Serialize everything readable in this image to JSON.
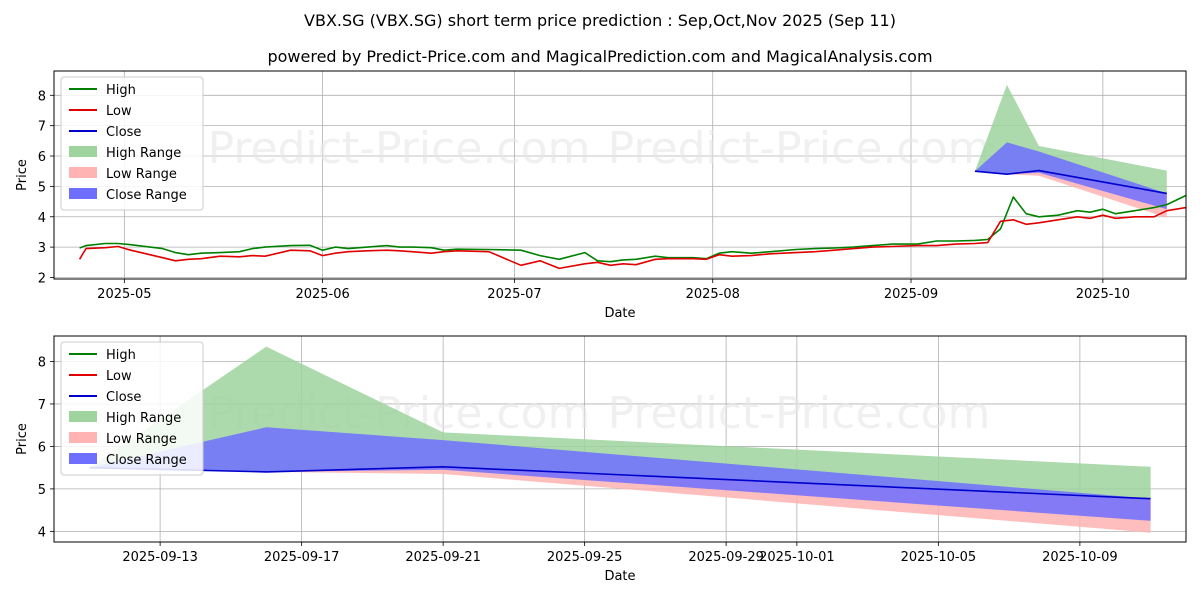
{
  "header": {
    "title": "VBX.SG (VBX.SG) short term price prediction : Sep,Oct,Nov 2025 (Sep 11)",
    "subtitle": "powered by Predict-Price.com and MagicalPrediction.com and MagicalAnalysis.com"
  },
  "watermark": "Predict-Price.com",
  "colors": {
    "high": "#008000",
    "low": "#e00000",
    "close": "#0000cc",
    "high_range": "#9fd49f",
    "low_range": "#ffb3b3",
    "close_range": "#6f6fff",
    "grid": "#b0b0b0"
  },
  "legend": [
    {
      "label": "High",
      "kind": "line",
      "color": "#008000"
    },
    {
      "label": "Low",
      "kind": "line",
      "color": "#e00000"
    },
    {
      "label": "Close",
      "kind": "line",
      "color": "#0000cc"
    },
    {
      "label": "High Range",
      "kind": "patch",
      "color": "#9fd49f"
    },
    {
      "label": "Low Range",
      "kind": "patch",
      "color": "#ffb3b3"
    },
    {
      "label": "Close Range",
      "kind": "patch",
      "color": "#6f6fff"
    }
  ],
  "chart_data": [
    {
      "type": "line",
      "xlabel": "Date",
      "ylabel": "Price",
      "xlim": [
        "2025-04-20",
        "2025-10-14"
      ],
      "ylim": [
        1.95,
        8.8
      ],
      "yticks": [
        2,
        3,
        4,
        5,
        6,
        7,
        8
      ],
      "xticks": [
        "2025-05-01",
        "2025-06-01",
        "2025-07-01",
        "2025-08-01",
        "2025-09-01",
        "2025-10-01"
      ],
      "xtick_labels": [
        "2025-05",
        "2025-06",
        "2025-07",
        "2025-08",
        "2025-09",
        "2025-10"
      ],
      "grid": true,
      "legend_position": "upper left",
      "series": [
        {
          "name": "High",
          "points": [
            [
              "2025-04-24",
              2.97
            ],
            [
              "2025-04-25",
              3.05
            ],
            [
              "2025-04-28",
              3.12
            ],
            [
              "2025-04-30",
              3.12
            ],
            [
              "2025-05-02",
              3.08
            ],
            [
              "2025-05-05",
              3.0
            ],
            [
              "2025-05-07",
              2.95
            ],
            [
              "2025-05-09",
              2.82
            ],
            [
              "2025-05-11",
              2.75
            ],
            [
              "2025-05-13",
              2.8
            ],
            [
              "2025-05-16",
              2.82
            ],
            [
              "2025-05-19",
              2.85
            ],
            [
              "2025-05-21",
              2.95
            ],
            [
              "2025-05-23",
              3.0
            ],
            [
              "2025-05-27",
              3.05
            ],
            [
              "2025-05-30",
              3.06
            ],
            [
              "2025-06-01",
              2.9
            ],
            [
              "2025-06-03",
              3.0
            ],
            [
              "2025-06-05",
              2.95
            ],
            [
              "2025-06-08",
              3.0
            ],
            [
              "2025-06-11",
              3.05
            ],
            [
              "2025-06-13",
              3.0
            ],
            [
              "2025-06-15",
              3.0
            ],
            [
              "2025-06-18",
              2.98
            ],
            [
              "2025-06-20",
              2.9
            ],
            [
              "2025-06-22",
              2.93
            ],
            [
              "2025-06-27",
              2.92
            ],
            [
              "2025-07-02",
              2.9
            ],
            [
              "2025-07-05",
              2.72
            ],
            [
              "2025-07-08",
              2.6
            ],
            [
              "2025-07-12",
              2.82
            ],
            [
              "2025-07-14",
              2.55
            ],
            [
              "2025-07-16",
              2.52
            ],
            [
              "2025-07-18",
              2.58
            ],
            [
              "2025-07-20",
              2.6
            ],
            [
              "2025-07-23",
              2.7
            ],
            [
              "2025-07-25",
              2.65
            ],
            [
              "2025-07-29",
              2.65
            ],
            [
              "2025-07-31",
              2.62
            ],
            [
              "2025-08-02",
              2.8
            ],
            [
              "2025-08-04",
              2.85
            ],
            [
              "2025-08-07",
              2.8
            ],
            [
              "2025-08-10",
              2.85
            ],
            [
              "2025-08-14",
              2.92
            ],
            [
              "2025-08-17",
              2.95
            ],
            [
              "2025-08-20",
              2.97
            ],
            [
              "2025-08-23",
              3.0
            ],
            [
              "2025-08-26",
              3.05
            ],
            [
              "2025-08-29",
              3.1
            ],
            [
              "2025-09-02",
              3.1
            ],
            [
              "2025-09-05",
              3.2
            ],
            [
              "2025-09-08",
              3.2
            ],
            [
              "2025-09-11",
              3.22
            ],
            [
              "2025-09-13",
              3.25
            ],
            [
              "2025-09-15",
              3.6
            ],
            [
              "2025-09-17",
              4.65
            ],
            [
              "2025-09-19",
              4.1
            ],
            [
              "2025-09-21",
              4.0
            ],
            [
              "2025-09-24",
              4.05
            ],
            [
              "2025-09-27",
              4.2
            ],
            [
              "2025-09-29",
              4.15
            ],
            [
              "2025-10-01",
              4.25
            ],
            [
              "2025-10-03",
              4.1
            ],
            [
              "2025-10-06",
              4.2
            ],
            [
              "2025-10-09",
              4.3
            ],
            [
              "2025-10-11",
              4.4
            ],
            [
              "2025-10-14",
              4.7
            ],
            [
              "2025-10-16",
              4.95
            ]
          ]
        },
        {
          "name": "Low",
          "points": [
            [
              "2025-04-24",
              2.6
            ],
            [
              "2025-04-25",
              2.95
            ],
            [
              "2025-04-28",
              2.98
            ],
            [
              "2025-04-30",
              3.02
            ],
            [
              "2025-05-02",
              2.9
            ],
            [
              "2025-05-05",
              2.75
            ],
            [
              "2025-05-07",
              2.65
            ],
            [
              "2025-05-09",
              2.55
            ],
            [
              "2025-05-11",
              2.6
            ],
            [
              "2025-05-13",
              2.62
            ],
            [
              "2025-05-16",
              2.7
            ],
            [
              "2025-05-19",
              2.68
            ],
            [
              "2025-05-21",
              2.72
            ],
            [
              "2025-05-23",
              2.7
            ],
            [
              "2025-05-27",
              2.9
            ],
            [
              "2025-05-30",
              2.88
            ],
            [
              "2025-06-01",
              2.72
            ],
            [
              "2025-06-03",
              2.8
            ],
            [
              "2025-06-05",
              2.85
            ],
            [
              "2025-06-08",
              2.88
            ],
            [
              "2025-06-11",
              2.9
            ],
            [
              "2025-06-13",
              2.88
            ],
            [
              "2025-06-15",
              2.85
            ],
            [
              "2025-06-18",
              2.8
            ],
            [
              "2025-06-20",
              2.85
            ],
            [
              "2025-06-22",
              2.88
            ],
            [
              "2025-06-27",
              2.85
            ],
            [
              "2025-07-02",
              2.4
            ],
            [
              "2025-07-05",
              2.55
            ],
            [
              "2025-07-08",
              2.3
            ],
            [
              "2025-07-12",
              2.45
            ],
            [
              "2025-07-14",
              2.5
            ],
            [
              "2025-07-16",
              2.4
            ],
            [
              "2025-07-18",
              2.45
            ],
            [
              "2025-07-20",
              2.42
            ],
            [
              "2025-07-23",
              2.6
            ],
            [
              "2025-07-25",
              2.62
            ],
            [
              "2025-07-29",
              2.62
            ],
            [
              "2025-07-31",
              2.6
            ],
            [
              "2025-08-02",
              2.75
            ],
            [
              "2025-08-04",
              2.7
            ],
            [
              "2025-08-07",
              2.72
            ],
            [
              "2025-08-10",
              2.78
            ],
            [
              "2025-08-14",
              2.82
            ],
            [
              "2025-08-17",
              2.85
            ],
            [
              "2025-08-20",
              2.9
            ],
            [
              "2025-08-23",
              2.95
            ],
            [
              "2025-08-26",
              3.0
            ],
            [
              "2025-08-29",
              3.02
            ],
            [
              "2025-09-02",
              3.05
            ],
            [
              "2025-09-05",
              3.05
            ],
            [
              "2025-09-08",
              3.1
            ],
            [
              "2025-09-11",
              3.12
            ],
            [
              "2025-09-13",
              3.15
            ],
            [
              "2025-09-15",
              3.85
            ],
            [
              "2025-09-17",
              3.9
            ],
            [
              "2025-09-19",
              3.75
            ],
            [
              "2025-09-21",
              3.8
            ],
            [
              "2025-09-24",
              3.9
            ],
            [
              "2025-09-27",
              4.0
            ],
            [
              "2025-09-29",
              3.95
            ],
            [
              "2025-10-01",
              4.05
            ],
            [
              "2025-10-03",
              3.95
            ],
            [
              "2025-10-06",
              4.0
            ],
            [
              "2025-10-09",
              4.0
            ],
            [
              "2025-10-11",
              4.2
            ],
            [
              "2025-10-14",
              4.3
            ],
            [
              "2025-10-16",
              4.7
            ]
          ]
        },
        {
          "name": "Close",
          "points": [
            [
              "2025-09-11",
              5.5
            ],
            [
              "2025-09-16",
              5.4
            ],
            [
              "2025-09-21",
              5.52
            ],
            [
              "2025-10-11",
              4.77
            ]
          ]
        }
      ],
      "ranges": [
        {
          "name": "High Range",
          "points": [
            [
              "2025-09-11",
              5.5,
              5.5
            ],
            [
              "2025-09-16",
              8.35,
              5.4
            ],
            [
              "2025-09-21",
              6.33,
              5.52
            ],
            [
              "2025-10-11",
              5.52,
              4.77
            ]
          ]
        },
        {
          "name": "Low Range",
          "points": [
            [
              "2025-09-11",
              5.5,
              5.5
            ],
            [
              "2025-09-16",
              5.4,
              5.4
            ],
            [
              "2025-09-21",
              5.52,
              5.35
            ],
            [
              "2025-10-11",
              4.77,
              3.97
            ]
          ]
        },
        {
          "name": "Close Range",
          "points": [
            [
              "2025-09-11",
              5.5,
              5.5
            ],
            [
              "2025-09-16",
              6.45,
              5.4
            ],
            [
              "2025-09-21",
              6.15,
              5.45
            ],
            [
              "2025-10-11",
              4.77,
              4.25
            ]
          ]
        }
      ]
    },
    {
      "type": "line",
      "xlabel": "Date",
      "ylabel": "Price",
      "xlim": [
        "2025-09-10",
        "2025-10-12"
      ],
      "ylim": [
        3.75,
        8.6
      ],
      "yticks": [
        4,
        5,
        6,
        7,
        8
      ],
      "xticks": [
        "2025-09-13",
        "2025-09-17",
        "2025-09-21",
        "2025-09-25",
        "2025-09-29",
        "2025-10-01",
        "2025-10-05",
        "2025-10-09"
      ],
      "xtick_labels": [
        "2025-09-13",
        "2025-09-17",
        "2025-09-21",
        "2025-09-25",
        "2025-09-29",
        "2025-10-01",
        "2025-10-05",
        "2025-10-09"
      ],
      "grid": true,
      "legend_position": "upper left",
      "series": [
        {
          "name": "High",
          "points": []
        },
        {
          "name": "Low",
          "points": []
        },
        {
          "name": "Close",
          "points": [
            [
              "2025-09-11",
              5.5
            ],
            [
              "2025-09-16",
              5.4
            ],
            [
              "2025-09-21",
              5.52
            ],
            [
              "2025-10-11",
              4.77
            ]
          ]
        }
      ],
      "ranges": [
        {
          "name": "High Range",
          "points": [
            [
              "2025-09-11",
              5.5,
              5.5
            ],
            [
              "2025-09-16",
              8.35,
              5.4
            ],
            [
              "2025-09-21",
              6.33,
              5.52
            ],
            [
              "2025-10-11",
              5.52,
              4.77
            ]
          ]
        },
        {
          "name": "Low Range",
          "points": [
            [
              "2025-09-11",
              5.5,
              5.5
            ],
            [
              "2025-09-16",
              5.4,
              5.4
            ],
            [
              "2025-09-21",
              5.52,
              5.35
            ],
            [
              "2025-10-11",
              4.77,
              3.97
            ]
          ]
        },
        {
          "name": "Close Range",
          "points": [
            [
              "2025-09-11",
              5.5,
              5.5
            ],
            [
              "2025-09-16",
              6.45,
              5.4
            ],
            [
              "2025-09-21",
              6.15,
              5.45
            ],
            [
              "2025-10-11",
              4.77,
              4.25
            ]
          ]
        }
      ]
    }
  ]
}
